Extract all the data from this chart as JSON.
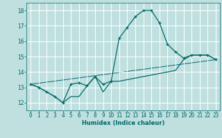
{
  "xlabel": "Humidex (Indice chaleur)",
  "ylabel": "",
  "bg_color": "#c0e0e0",
  "grid_color": "#ffffff",
  "line_color": "#006666",
  "xlim": [
    -0.5,
    23.5
  ],
  "ylim": [
    11.5,
    18.5
  ],
  "yticks": [
    12,
    13,
    14,
    15,
    16,
    17,
    18
  ],
  "xticks": [
    0,
    1,
    2,
    3,
    4,
    5,
    6,
    7,
    8,
    9,
    10,
    11,
    12,
    13,
    14,
    15,
    16,
    17,
    18,
    19,
    20,
    21,
    22,
    23
  ],
  "series1_x": [
    0,
    1,
    2,
    3,
    4,
    5,
    6,
    7,
    8,
    9,
    10,
    11,
    12,
    13,
    14,
    15,
    16,
    17,
    18,
    19,
    20,
    21,
    22,
    23
  ],
  "series1_y": [
    13.2,
    13.0,
    12.7,
    12.4,
    12.0,
    13.2,
    13.3,
    13.1,
    13.7,
    13.2,
    13.4,
    16.2,
    16.9,
    17.6,
    18.0,
    18.0,
    17.2,
    15.8,
    15.3,
    14.9,
    15.1,
    15.1,
    15.1,
    14.8
  ],
  "series2_x": [
    0,
    1,
    2,
    3,
    4,
    5,
    6,
    7,
    8,
    9,
    10,
    11,
    12,
    13,
    14,
    15,
    16,
    17,
    18,
    19,
    20,
    21,
    22,
    23
  ],
  "series2_y": [
    13.2,
    13.0,
    12.7,
    12.4,
    12.0,
    12.4,
    12.4,
    13.1,
    13.7,
    12.7,
    13.4,
    13.4,
    13.5,
    13.6,
    13.7,
    13.8,
    13.9,
    14.0,
    14.1,
    14.8,
    15.1,
    15.1,
    15.1,
    14.8
  ],
  "series3_x": [
    0,
    23
  ],
  "series3_y": [
    13.2,
    14.8
  ],
  "xlabel_fontsize": 6,
  "tick_fontsize": 5.5
}
